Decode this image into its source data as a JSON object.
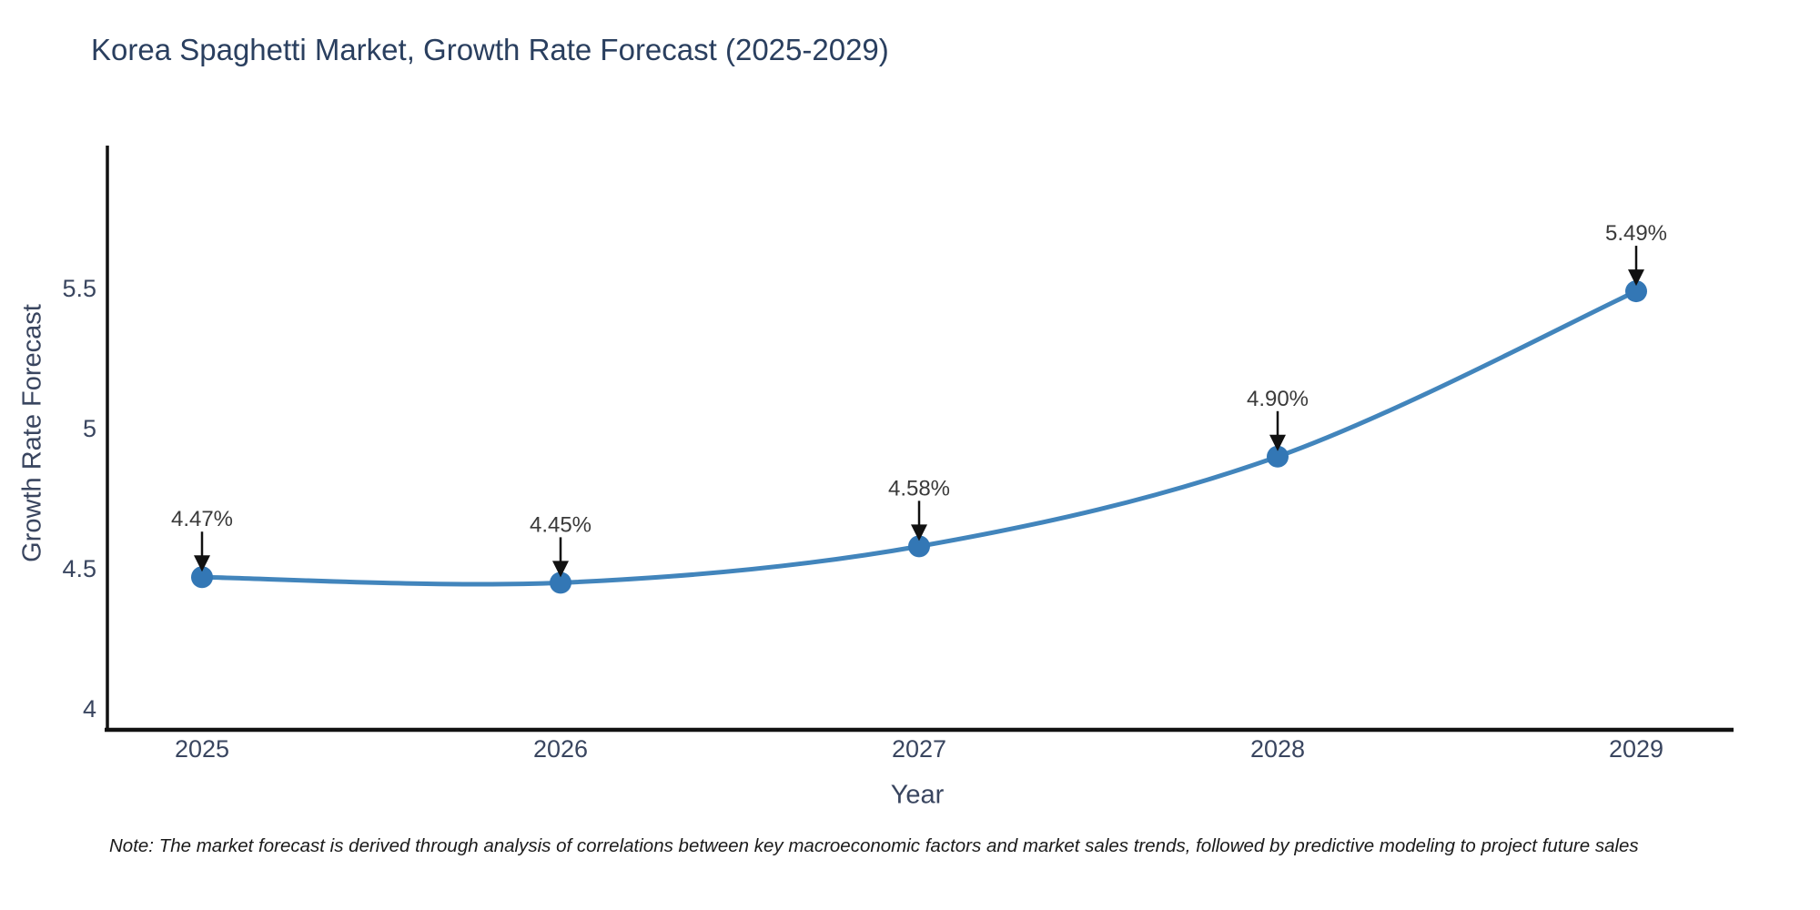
{
  "title": "Korea Spaghetti Market, Growth Rate Forecast (2025-2029)",
  "note": "Note: The market forecast is derived through analysis of correlations between key macroeconomic factors and market sales trends, followed by predictive modeling to project future sales",
  "colors": {
    "title_text": "#2a3f5f",
    "axis_text": "#39455f",
    "annotation_text": "#3a3a3a",
    "line": "#4285bc",
    "marker": "#3377b5",
    "arrow": "#111111",
    "axis_line": "#111111",
    "background": "#ffffff"
  },
  "chart_data": {
    "type": "line",
    "curve": "spline",
    "title": "Korea Spaghetti Market, Growth Rate Forecast (2025-2029)",
    "xlabel": "Year",
    "ylabel": "Growth Rate Forecast",
    "x": [
      2025,
      2026,
      2027,
      2028,
      2029
    ],
    "series": [
      {
        "name": "Growth Rate Forecast",
        "values": [
          4.47,
          4.45,
          4.58,
          4.9,
          5.49
        ]
      }
    ],
    "point_labels": [
      "4.47%",
      "4.45%",
      "4.58%",
      "4.90%",
      "5.49%"
    ],
    "annotations": "each point labeled with value and downward arrow",
    "y_ticks": [
      "4",
      "4.5",
      "5",
      "5.5"
    ],
    "y_tick_values": [
      4,
      4.5,
      5,
      5.5
    ],
    "ylim": [
      3.93,
      6.01
    ],
    "grid": false,
    "legend": "none",
    "marker_size": 12,
    "line_width": 5
  }
}
